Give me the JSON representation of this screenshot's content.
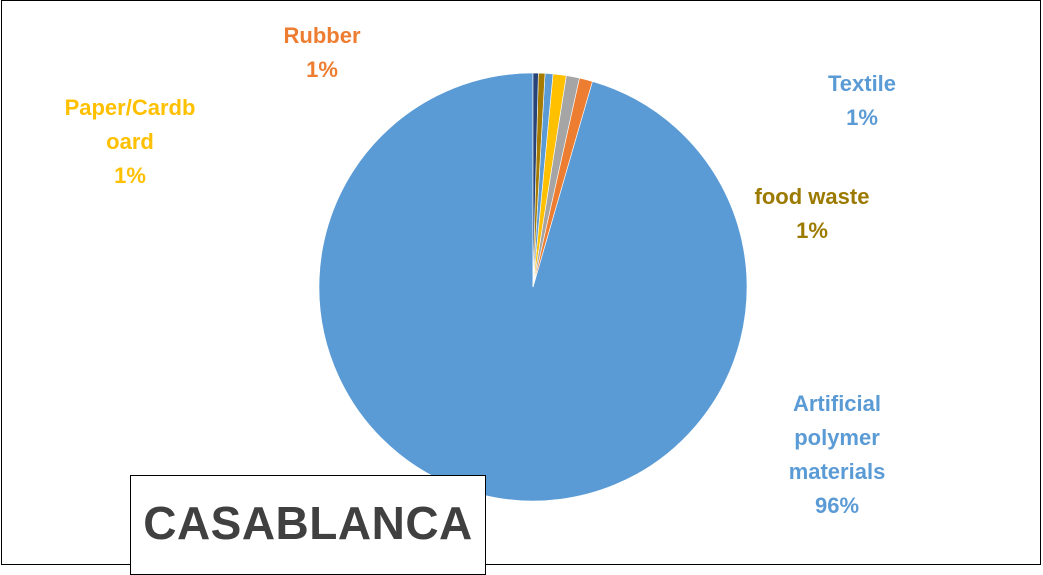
{
  "chart_data": {
    "type": "pie",
    "title": "",
    "slices": [
      {
        "name": "Artificial polymer materials",
        "value": 96,
        "label_lines": [
          "Artificial",
          "polymer",
          "materials"
        ],
        "value_label": "96%",
        "color": "#5B9BD5",
        "label_color": "#5B9BD5"
      },
      {
        "name": "Rubber",
        "value": 1,
        "label_lines": [
          "Rubber"
        ],
        "value_label": "1%",
        "color": "#ED7D31",
        "label_color": "#ED7D31"
      },
      {
        "name": "",
        "value": 1,
        "label_lines": [],
        "value_label": "",
        "color": "#A5A5A5",
        "label_color": "#A5A5A5"
      },
      {
        "name": "Paper/Cardboard",
        "value": 1,
        "label_lines": [
          "Paper/Cardb",
          "oard"
        ],
        "value_label": "1%",
        "color": "#FFC000",
        "label_color": "#FFC000"
      },
      {
        "name": "Textile",
        "value": 0.6,
        "label_lines": [
          "Textile"
        ],
        "value_label": "1%",
        "color": "#5B9BD5",
        "label_color": "#5B9BD5"
      },
      {
        "name": "food waste",
        "value": 0.5,
        "label_lines": [
          "food waste"
        ],
        "value_label": "1%",
        "color": "#A57C00",
        "label_color": "#9C7A00"
      },
      {
        "name": "",
        "value": 0.4,
        "label_lines": [],
        "value_label": "",
        "color": "#264478",
        "label_color": "#264478"
      }
    ],
    "start_angle_deg": 0,
    "direction": "counterclockwise",
    "legend": "none"
  },
  "annotation": {
    "city": "CASABLANCA"
  }
}
